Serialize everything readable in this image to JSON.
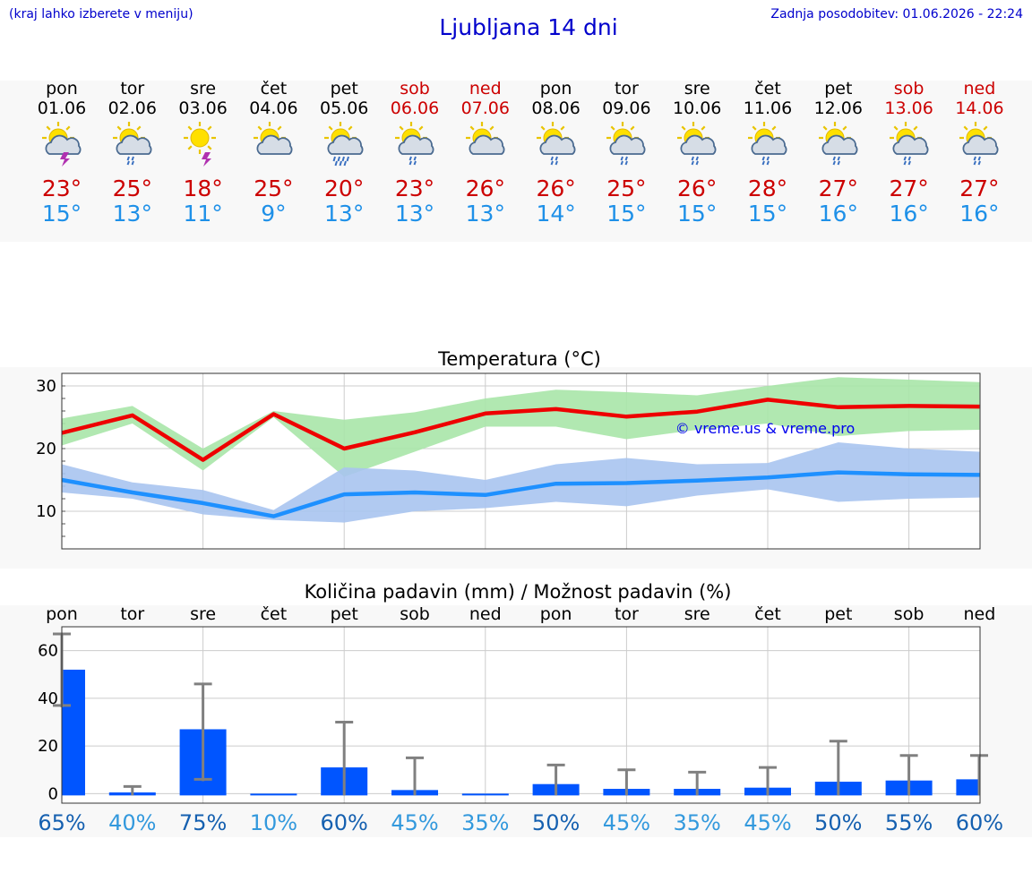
{
  "header": {
    "left_note": "(kraj lahko izberete v meniju)",
    "title": "Ljubljana 14 dni",
    "updated": "Zadnja posodobitev: 01.06.2026 - 22:24"
  },
  "days": [
    {
      "name": "pon",
      "date": "01.06",
      "max": "23°",
      "min": "15°",
      "weekend": false,
      "icon": "sun-cloud-lightning-icon"
    },
    {
      "name": "tor",
      "date": "02.06",
      "max": "25°",
      "min": "13°",
      "weekend": false,
      "icon": "sun-cloud-rain-icon"
    },
    {
      "name": "sre",
      "date": "03.06",
      "max": "18°",
      "min": "11°",
      "weekend": false,
      "icon": "sun-lightning-icon"
    },
    {
      "name": "čet",
      "date": "04.06",
      "max": "25°",
      "min": "9°",
      "weekend": false,
      "icon": "sun-cloud-icon"
    },
    {
      "name": "pet",
      "date": "05.06",
      "max": "20°",
      "min": "13°",
      "weekend": false,
      "icon": "sun-cloud-heavy-rain-icon"
    },
    {
      "name": "sob",
      "date": "06.06",
      "max": "23°",
      "min": "13°",
      "weekend": true,
      "icon": "sun-cloud-rain-icon"
    },
    {
      "name": "ned",
      "date": "07.06",
      "max": "26°",
      "min": "13°",
      "weekend": true,
      "icon": "sun-cloud-icon"
    },
    {
      "name": "pon",
      "date": "08.06",
      "max": "26°",
      "min": "14°",
      "weekend": false,
      "icon": "sun-cloud-rain-icon"
    },
    {
      "name": "tor",
      "date": "09.06",
      "max": "25°",
      "min": "15°",
      "weekend": false,
      "icon": "sun-cloud-rain-icon"
    },
    {
      "name": "sre",
      "date": "10.06",
      "max": "26°",
      "min": "15°",
      "weekend": false,
      "icon": "sun-cloud-rain-icon"
    },
    {
      "name": "čet",
      "date": "11.06",
      "max": "28°",
      "min": "15°",
      "weekend": false,
      "icon": "sun-cloud-rain-icon"
    },
    {
      "name": "pet",
      "date": "12.06",
      "max": "27°",
      "min": "16°",
      "weekend": false,
      "icon": "sun-cloud-rain-icon"
    },
    {
      "name": "sob",
      "date": "13.06",
      "max": "27°",
      "min": "16°",
      "weekend": true,
      "icon": "sun-cloud-rain-icon"
    },
    {
      "name": "ned",
      "date": "14.06",
      "max": "27°",
      "min": "16°",
      "weekend": true,
      "icon": "sun-cloud-rain-icon"
    }
  ],
  "colors": {
    "max": "#cc0000",
    "min": "#1e90e8",
    "max_line": "#ee0000",
    "min_line": "#1e90ff",
    "max_band": "#a8e6a8",
    "min_band": "#a9c4f0",
    "bar": "#0055ff",
    "err": "#808080",
    "pct_dark": "#1560b0",
    "pct_light": "#3399dd"
  },
  "chart_data": [
    {
      "type": "line",
      "title": "Temperatura (°C)",
      "watermark": "© vreme.us & vreme.pro",
      "x": [
        "01.06",
        "02.06",
        "03.06",
        "04.06",
        "05.06",
        "06.06",
        "07.06",
        "08.06",
        "09.06",
        "10.06",
        "11.06",
        "12.06",
        "13.06",
        "14.06"
      ],
      "yticks": [
        10,
        20,
        30
      ],
      "ylim": [
        4,
        32
      ],
      "series": [
        {
          "role": "max",
          "values": [
            22.5,
            25.3,
            18.2,
            25.5,
            20.0,
            22.6,
            25.6,
            26.3,
            25.1,
            25.9,
            27.8,
            26.6,
            26.8,
            26.7
          ],
          "band_low": [
            20.5,
            24.0,
            16.5,
            25.0,
            15.5,
            19.5,
            23.5,
            23.5,
            21.5,
            23.0,
            24.0,
            22.0,
            22.8,
            23.0
          ],
          "band_high": [
            24.8,
            26.8,
            20.0,
            26.0,
            24.6,
            25.8,
            28.0,
            29.4,
            29.0,
            28.5,
            30.0,
            31.4,
            31.0,
            30.6
          ]
        },
        {
          "role": "min",
          "values": [
            15.0,
            13.0,
            11.3,
            9.2,
            12.7,
            13.0,
            12.6,
            14.4,
            14.5,
            14.9,
            15.4,
            16.2,
            15.9,
            15.8
          ],
          "band_low": [
            13.0,
            12.0,
            9.5,
            8.6,
            8.2,
            10.0,
            10.5,
            11.5,
            10.8,
            12.5,
            13.5,
            11.5,
            12.0,
            12.2
          ],
          "band_high": [
            17.5,
            14.6,
            13.4,
            10.2,
            17.0,
            16.5,
            15.0,
            17.5,
            18.5,
            17.5,
            17.7,
            21.0,
            20.0,
            19.5
          ]
        }
      ]
    },
    {
      "type": "bar",
      "title": "Količina padavin (mm) / Možnost padavin (%)",
      "categories": [
        "pon",
        "tor",
        "sre",
        "čet",
        "pet",
        "sob",
        "ned",
        "pon",
        "tor",
        "sre",
        "čet",
        "pet",
        "sob",
        "ned"
      ],
      "yticks": [
        0,
        20,
        40,
        60
      ],
      "ylim": [
        -4,
        70
      ],
      "values": [
        52,
        0.5,
        27,
        0,
        11,
        1.5,
        0,
        4,
        2,
        2,
        2.5,
        5,
        5.5,
        6
      ],
      "err_low": [
        37,
        0,
        6,
        0,
        0,
        0,
        0,
        0,
        0,
        0,
        0,
        0,
        0,
        0
      ],
      "err_high": [
        67,
        3,
        46,
        0,
        30,
        15,
        0,
        12,
        10,
        9,
        11,
        22,
        16,
        16
      ],
      "chance": [
        "65%",
        "40%",
        "75%",
        "10%",
        "60%",
        "45%",
        "35%",
        "50%",
        "45%",
        "35%",
        "45%",
        "50%",
        "55%",
        "60%"
      ]
    }
  ]
}
